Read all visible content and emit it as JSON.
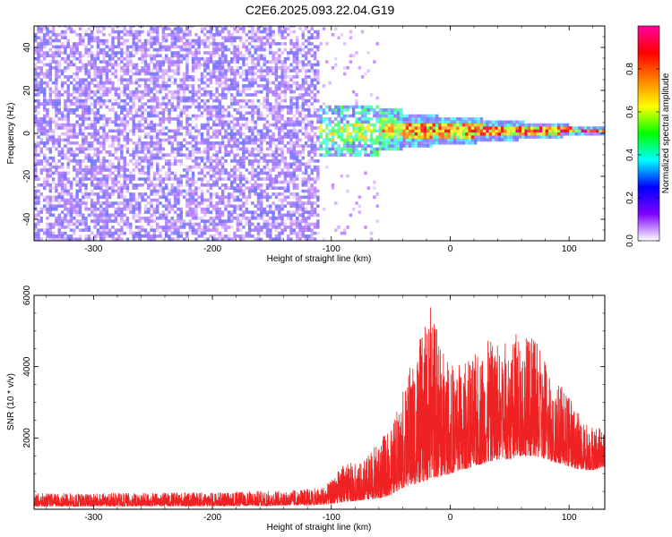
{
  "title": "C2E6.2025.093.22.04.G19",
  "chart_data": [
    {
      "type": "heatmap",
      "xlabel": "Height of straight line (km)",
      "ylabel": "Frequency (Hz)",
      "xlim": [
        -350,
        130
      ],
      "ylim": [
        -50,
        50
      ],
      "xticks": [
        -300,
        -200,
        -100,
        0,
        100
      ],
      "yticks": [
        -40,
        -20,
        0,
        20,
        40
      ],
      "colorbar": {
        "label": "Normalized spectral amplitude",
        "range": [
          0.0,
          1.0
        ],
        "ticks": [
          0.0,
          0.2,
          0.4,
          0.6,
          0.8
        ],
        "colors": [
          "#ffffff",
          "#7f00ff",
          "#0000ff",
          "#00ffff",
          "#00ff00",
          "#ffff00",
          "#ff7f00",
          "#ff0000",
          "#ff00a0"
        ]
      },
      "features": [
        {
          "region": "noise",
          "x_range": [
            -350,
            -110
          ],
          "freq_range": [
            -50,
            50
          ],
          "amplitude": "0.1-0.3"
        },
        {
          "region": "transition",
          "x_range": [
            -110,
            -40
          ],
          "freq_range": [
            -12,
            12
          ],
          "amplitude": "0.2-0.6"
        },
        {
          "region": "signal",
          "x_range": [
            -40,
            130
          ],
          "center_freq": 0.5,
          "width_hz_start": 8,
          "width_hz_end": 1.5,
          "amplitude": "0.7-1.0"
        }
      ]
    },
    {
      "type": "line",
      "xlabel": "Height of straight line (km)",
      "ylabel": "SNR (10 * v/v)",
      "xlim": [
        -350,
        130
      ],
      "ylim": [
        0,
        6000
      ],
      "xticks": [
        -300,
        -200,
        -100,
        0,
        100
      ],
      "yticks": [
        2000,
        4000,
        6000
      ],
      "series": [
        {
          "color": "#ee2222",
          "envelope": {
            "x": [
              -350,
              -300,
              -200,
              -150,
              -110,
              -100,
              -90,
              -75,
              -60,
              -50,
              -40,
              -30,
              -20,
              -15,
              -10,
              0,
              10,
              20,
              30,
              40,
              50,
              60,
              70,
              80,
              90,
              100,
              110,
              120,
              130
            ],
            "y_low": [
              80,
              80,
              90,
              100,
              120,
              150,
              200,
              250,
              300,
              400,
              600,
              700,
              800,
              900,
              900,
              1000,
              1100,
              1200,
              1300,
              1400,
              1400,
              1500,
              1500,
              1400,
              1300,
              1200,
              1100,
              1100,
              1200
            ],
            "y_high": [
              450,
              450,
              480,
              520,
              600,
              800,
              1300,
              1300,
              1900,
              2300,
              3300,
              4500,
              5200,
              5900,
              5000,
              4100,
              4200,
              4300,
              4700,
              4900,
              4800,
              5100,
              4800,
              4300,
              3600,
              3200,
              2600,
              2400,
              2200
            ]
          }
        }
      ]
    }
  ]
}
